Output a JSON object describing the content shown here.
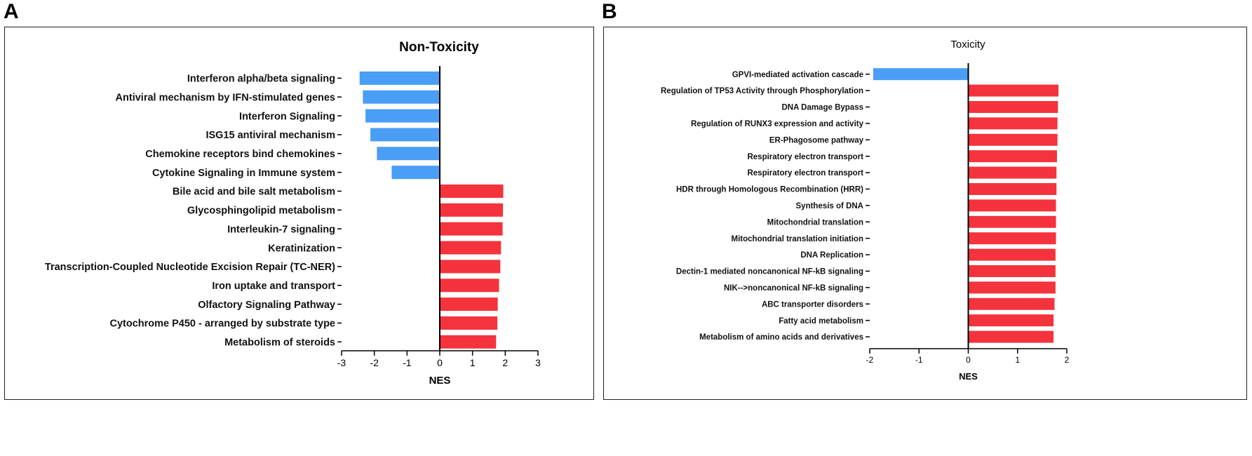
{
  "panels": [
    {
      "letter": "A"
    },
    {
      "letter": "B"
    }
  ],
  "colors": {
    "negative": "#4a9ef5",
    "positive": "#f5333c",
    "axis": "#000000"
  },
  "chart_data": [
    {
      "type": "bar",
      "orientation": "horizontal",
      "title": "Non-Toxicity",
      "xlabel": "NES",
      "ylabel": "",
      "xlim": [
        -3,
        3
      ],
      "xticks": [
        "-3",
        "-2",
        "-1",
        "0",
        "1",
        "2",
        "3"
      ],
      "grid": false,
      "categories": [
        "Interferon alpha/beta signaling",
        "Antiviral mechanism by IFN-stimulated genes",
        "Interferon Signaling",
        "ISG15 antiviral mechanism",
        "Chemokine receptors bind chemokines",
        "Cytokine Signaling in Immune system",
        "Bile acid and bile salt metabolism",
        "Glycosphingolipid metabolism",
        "Interleukin-7 signaling",
        "Keratinization",
        "Transcription-Coupled Nucleotide Excision Repair (TC-NER)",
        "Iron uptake and transport",
        "Olfactory Signaling Pathway",
        "Cytochrome P450 - arranged by substrate type",
        "Metabolism of steroids"
      ],
      "values": [
        -2.45,
        -2.35,
        -2.27,
        -2.12,
        -1.92,
        -1.47,
        1.94,
        1.93,
        1.92,
        1.87,
        1.85,
        1.81,
        1.77,
        1.76,
        1.72
      ]
    },
    {
      "type": "bar",
      "orientation": "horizontal",
      "title": "Toxicity",
      "xlabel": "NES",
      "ylabel": "",
      "xlim": [
        -2,
        2
      ],
      "xticks": [
        "-2",
        "-1",
        "0",
        "1",
        "2"
      ],
      "grid": false,
      "categories": [
        "GPVI-mediated activation cascade",
        "Regulation of TP53 Activity through Phosphorylation",
        "DNA Damage Bypass",
        "Regulation of RUNX3 expression and activity",
        "ER-Phagosome pathway",
        "Respiratory electron transport",
        "Respiratory electron transport",
        "HDR through Homologous Recombination (HRR)",
        "Synthesis of DNA",
        "Mitochondrial translation",
        "Mitochondrial translation initiation",
        "DNA Replication",
        "Dectin-1 mediated noncanonical NF-kB signaling",
        "NIK-->noncanonical NF-kB signaling",
        "ABC transporter disorders",
        "Fatty acid metabolism",
        "Metabolism of amino acids and derivatives"
      ],
      "values": [
        -1.93,
        1.83,
        1.82,
        1.81,
        1.81,
        1.8,
        1.79,
        1.79,
        1.78,
        1.78,
        1.78,
        1.77,
        1.77,
        1.77,
        1.75,
        1.73,
        1.73
      ]
    }
  ]
}
